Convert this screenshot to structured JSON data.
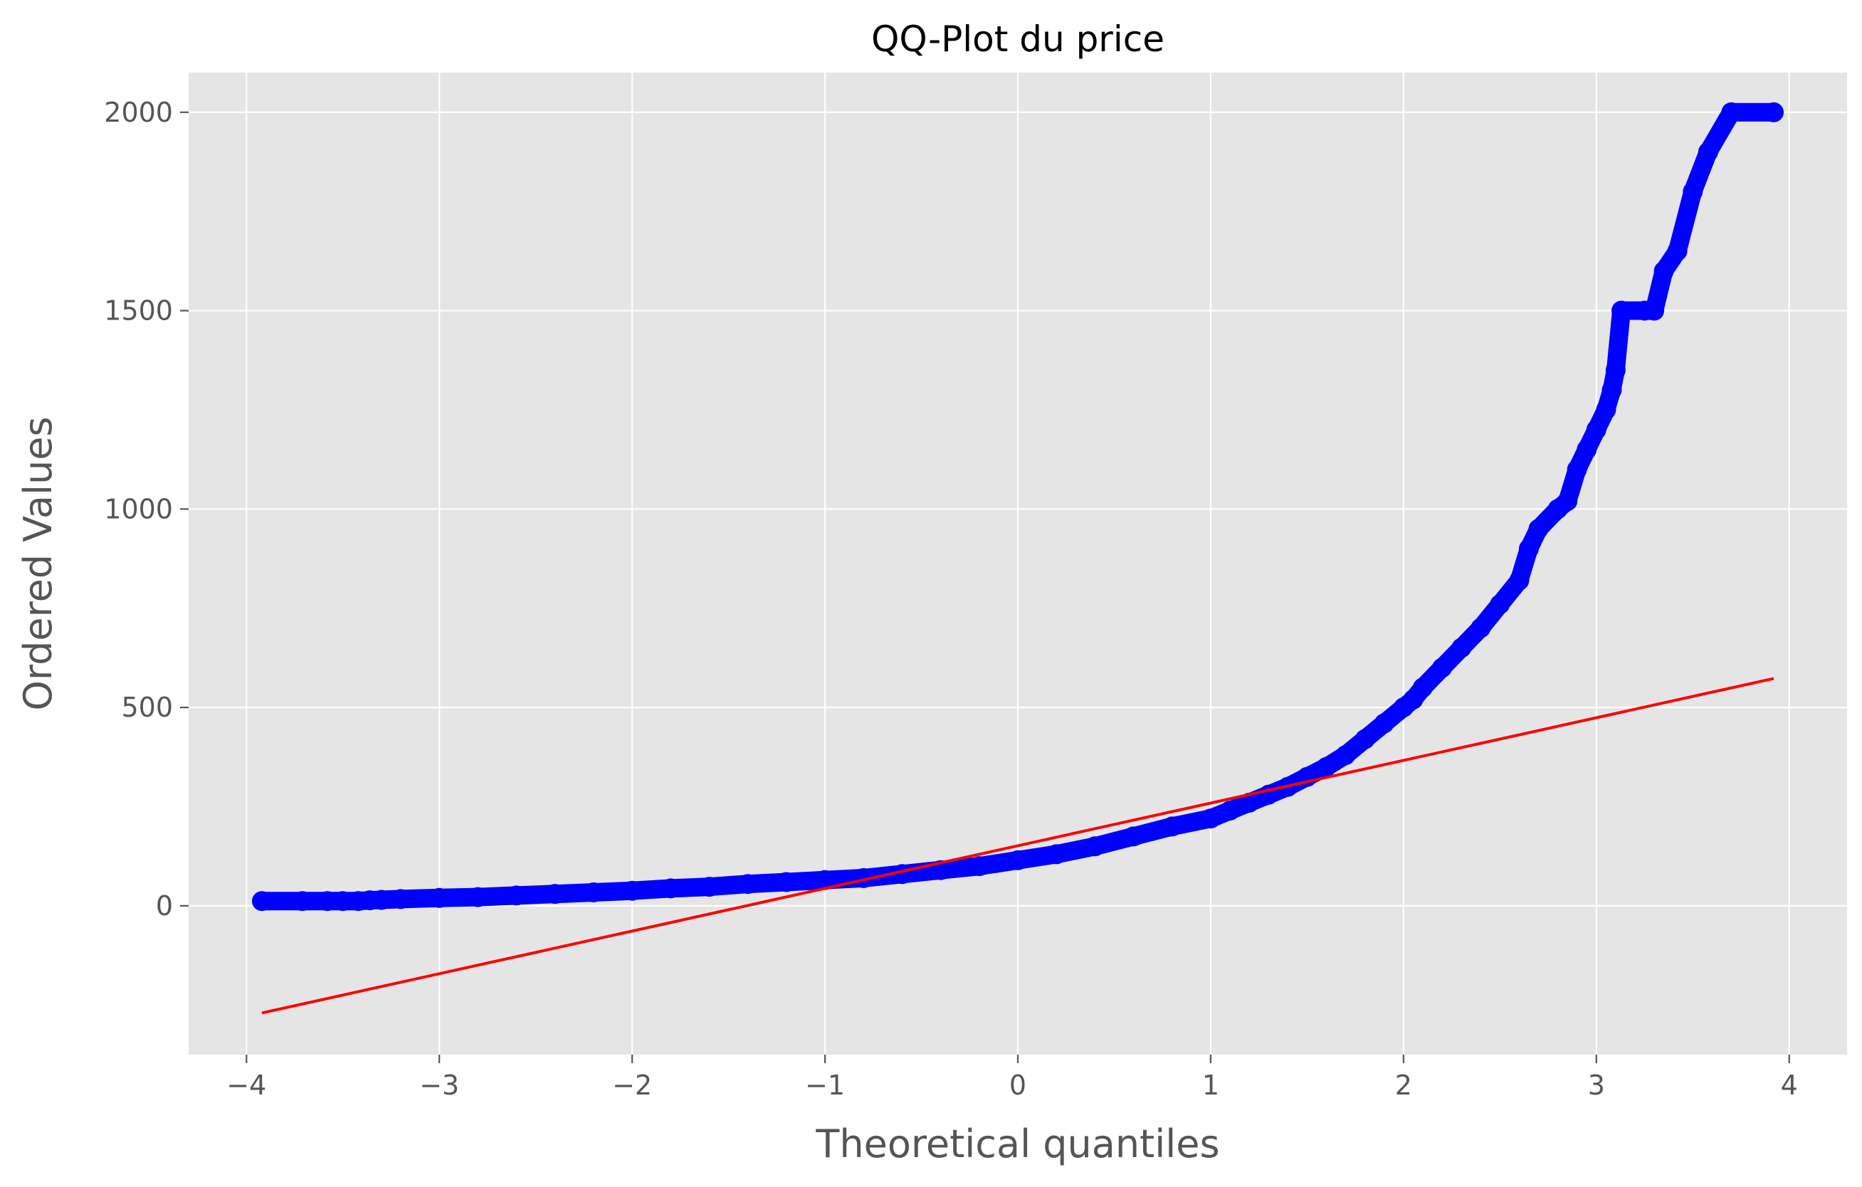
{
  "chart_data": {
    "type": "scatter",
    "title": "QQ-Plot du price",
    "xlabel": "Theoretical quantiles",
    "ylabel": "Ordered Values",
    "xlim": [
      -4.3,
      4.3
    ],
    "ylim": [
      -375,
      2100
    ],
    "xticks": [
      -4,
      -3,
      -2,
      -1,
      0,
      1,
      2,
      3,
      4
    ],
    "xtick_labels": [
      "−4",
      "−3",
      "−2",
      "−1",
      "0",
      "1",
      "2",
      "3",
      "4"
    ],
    "yticks": [
      0,
      500,
      1000,
      1500,
      2000
    ],
    "ytick_labels": [
      "0",
      "500",
      "1000",
      "1500",
      "2000"
    ],
    "grid": true,
    "colors": {
      "background": "#e5e5e5",
      "grid": "#ffffff",
      "points": "#0000ff",
      "fit_line": "#ff0000"
    },
    "series": [
      {
        "kind": "points",
        "x": [
          -3.92,
          -3.71,
          -3.58,
          -3.5,
          -3.42,
          -3.36,
          -3.3,
          -3.2,
          -3.0,
          -2.8,
          -2.6,
          -2.4,
          -2.2,
          -2.0,
          -1.8,
          -1.6,
          -1.4,
          -1.2,
          -1.0,
          -0.8,
          -0.6,
          -0.4,
          -0.2,
          0.0,
          0.2,
          0.4,
          0.6,
          0.8,
          1.0,
          1.1,
          1.2,
          1.3,
          1.4,
          1.5,
          1.6,
          1.7,
          1.8,
          1.9,
          2.0,
          2.05,
          2.1,
          2.2,
          2.3,
          2.4,
          2.5,
          2.6,
          2.65,
          2.7,
          2.8,
          2.85,
          2.9,
          2.95,
          3.0,
          3.05,
          3.08,
          3.1,
          3.13,
          3.25,
          3.3,
          3.35,
          3.42,
          3.5,
          3.58,
          3.7,
          3.92
        ],
        "y": [
          12,
          12,
          12,
          12,
          12,
          14,
          15,
          17,
          20,
          22,
          26,
          30,
          34,
          38,
          44,
          48,
          55,
          60,
          65,
          70,
          80,
          90,
          100,
          115,
          130,
          150,
          175,
          200,
          220,
          240,
          260,
          280,
          300,
          325,
          350,
          380,
          420,
          460,
          500,
          520,
          550,
          600,
          650,
          700,
          760,
          820,
          900,
          950,
          1000,
          1020,
          1100,
          1150,
          1200,
          1250,
          1300,
          1350,
          1500,
          1500,
          1500,
          1600,
          1650,
          1800,
          1900,
          2000,
          2000
        ]
      },
      {
        "kind": "line",
        "x": [
          -3.92,
          3.92
        ],
        "y": [
          -270,
          573
        ]
      }
    ]
  }
}
